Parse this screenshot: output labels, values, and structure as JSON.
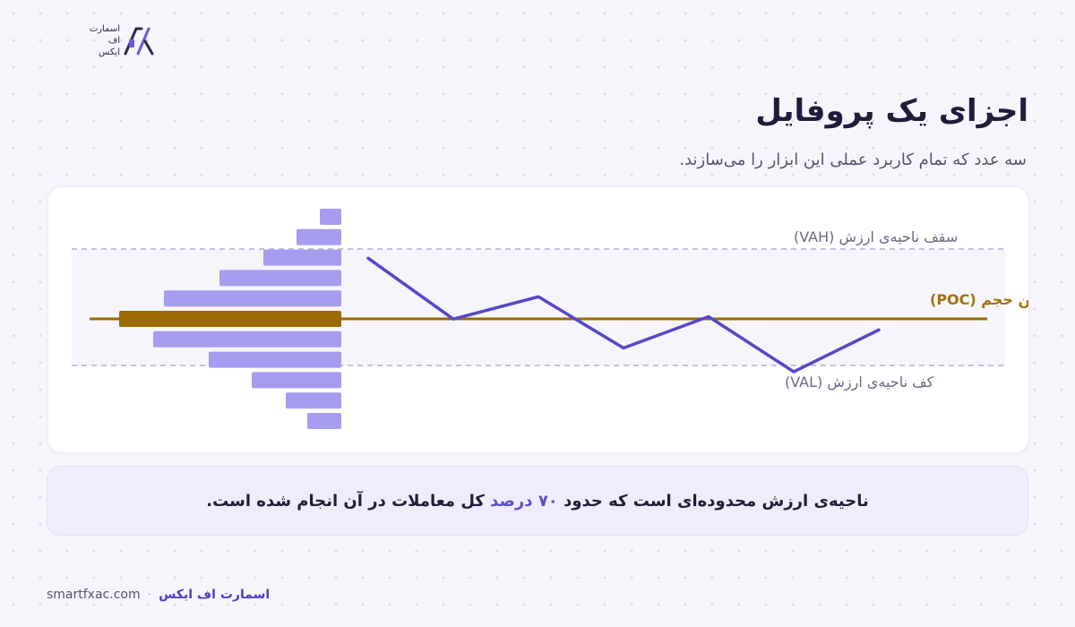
{
  "logo": {
    "text_lines": [
      "اسمارت",
      "اف",
      "ایکس"
    ]
  },
  "title": "اجزای یک پروفایل",
  "subtitle": "سه عدد که تمام کاربرد عملی این ابزار را می‌سازند.",
  "chart_data": {
    "type": "diagram",
    "levels": [
      {
        "name": "سقف ناحیه‌ی ارزش (VAH)",
        "role": "value-area-high",
        "color": "#6b6884"
      },
      {
        "name": "بیشترین حجم (POC)",
        "role": "point-of-control",
        "color": "#a3720a"
      },
      {
        "name": "کف ناحیه‌ی ارزش (VAL)",
        "role": "value-area-low",
        "color": "#6b6884"
      }
    ],
    "profile_bars": [
      {
        "volume": 24,
        "zone": "outside"
      },
      {
        "volume": 50,
        "zone": "outside"
      },
      {
        "volume": 87,
        "zone": "value"
      },
      {
        "volume": 136,
        "zone": "value"
      },
      {
        "volume": 198,
        "zone": "value"
      },
      {
        "volume": 248,
        "zone": "poc"
      },
      {
        "volume": 210,
        "zone": "value"
      },
      {
        "volume": 148,
        "zone": "value"
      },
      {
        "volume": 100,
        "zone": "outside"
      },
      {
        "volume": 62,
        "zone": "outside"
      },
      {
        "volume": 38,
        "zone": "outside"
      }
    ],
    "price_path": [
      [
        0,
        0.44
      ],
      [
        1,
        1.72
      ],
      [
        2,
        1.25
      ],
      [
        3,
        2.33
      ],
      [
        4,
        1.67
      ],
      [
        5,
        2.83
      ],
      [
        6,
        1.95
      ]
    ],
    "colors": {
      "bar": "#a69cf0",
      "poc_bar": "#9a6b00",
      "poc_line": "#9a6b00",
      "price_line": "#5548c8",
      "value_area_fill": "#f6f5fb",
      "value_area_border": "#b3add8"
    }
  },
  "note": {
    "before": "ناحیه‌ی ارزش محدوده‌ای است که حدود",
    "highlight": "۷۰ درصد",
    "after": "کل معاملات در آن انجام شده است."
  },
  "footer": {
    "brand": "اسمارت اف ایکس",
    "separator": "·",
    "site": "smartfxac.com"
  }
}
